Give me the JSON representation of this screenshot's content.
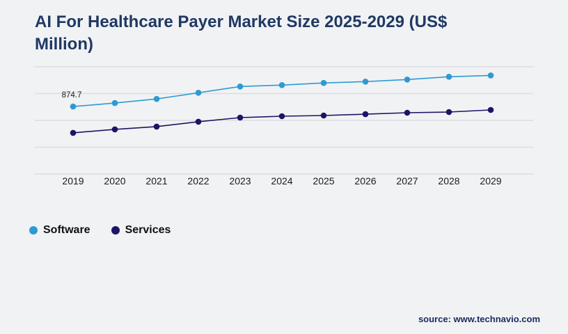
{
  "page": {
    "title": "AI For Healthcare Payer Market Size 2025-2029 (US$ Million)"
  },
  "source": {
    "label": "source: www.technavio.com"
  },
  "colors": {
    "title": "#203864",
    "software": "#2e9ad2",
    "services": "#1b1566",
    "gridline": "#d7d9dc",
    "axis_text": "#1a1a1a",
    "background": "#f1f2f4"
  },
  "chart_data": {
    "type": "line",
    "title": "AI For Healthcare Payer Market Size 2025-2029 (US$ Million)",
    "xlabel": "",
    "ylabel": "US$ Million",
    "categories": [
      "2019",
      "2020",
      "2021",
      "2022",
      "2023",
      "2024",
      "2025",
      "2026",
      "2027",
      "2028",
      "2029"
    ],
    "series": [
      {
        "name": "Software",
        "color": "#2e9ad2",
        "values": [
          874.7,
          911,
          954,
          1019,
          1084,
          1099,
          1121,
          1135,
          1157,
          1186,
          1200
        ]
      },
      {
        "name": "Services",
        "color": "#1b1566",
        "values": [
          600,
          636,
          665,
          716,
          759,
          774,
          781,
          795,
          810,
          817,
          839
        ]
      }
    ],
    "ylim": [
      170,
      1290
    ],
    "grid": true,
    "grid_color": "#d7d9dc",
    "gridline_count": 5,
    "y_axis_labels_visible": false,
    "legend_position": "bottom-left",
    "annotations": [
      {
        "series": "Software",
        "x": "2019",
        "text": "874.7"
      }
    ]
  }
}
